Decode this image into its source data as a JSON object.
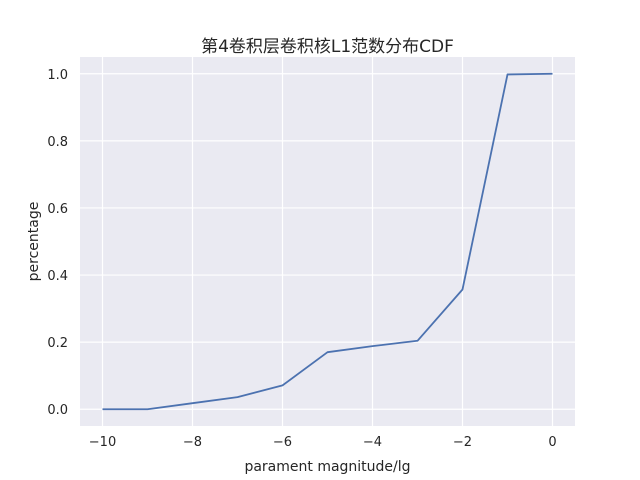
{
  "chart_data": {
    "type": "line",
    "title": "第4卷积层卷积核L1范数分布CDF",
    "xlabel": "parament magnitude/lg",
    "ylabel": "percentage",
    "xlim": [
      -10.5,
      0.5
    ],
    "ylim": [
      -0.05,
      1.05
    ],
    "xticks": [
      -10,
      -8,
      -6,
      -4,
      -2,
      0
    ],
    "xtick_labels": [
      "−10",
      "−8",
      "−6",
      "−4",
      "−2",
      "0"
    ],
    "yticks": [
      0.0,
      0.2,
      0.4,
      0.6,
      0.8,
      1.0
    ],
    "ytick_labels": [
      "0.0",
      "0.2",
      "0.4",
      "0.6",
      "0.8",
      "1.0"
    ],
    "grid": true,
    "series": [
      {
        "color": "#4c72b0",
        "x": [
          -10,
          -9,
          -8,
          -7,
          -6,
          -5,
          -4,
          -3,
          -2,
          -1,
          0
        ],
        "y": [
          0.0,
          0.0,
          0.018,
          0.036,
          0.071,
          0.17,
          0.188,
          0.204,
          0.357,
          0.998,
          1.0
        ]
      }
    ]
  }
}
